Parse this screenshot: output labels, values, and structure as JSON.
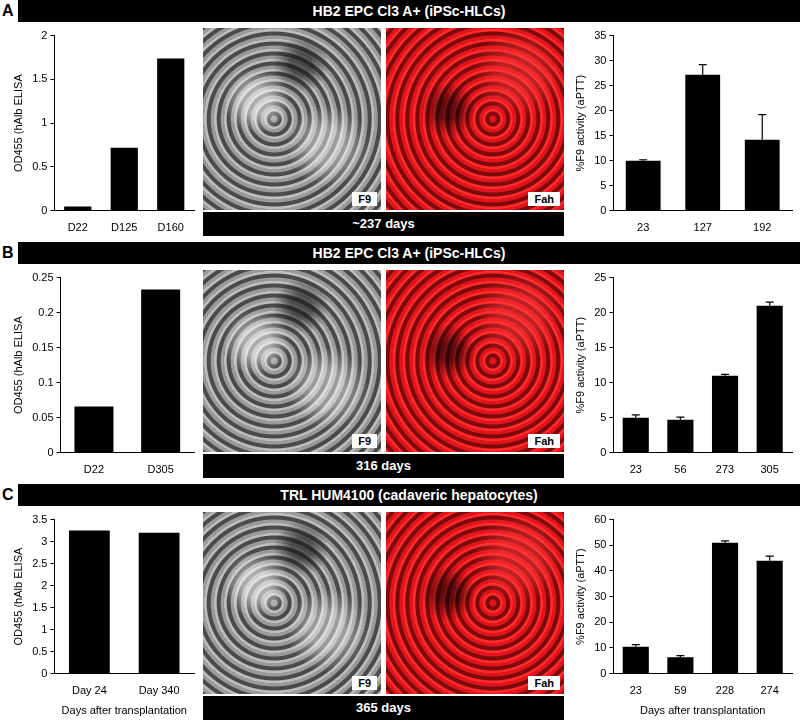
{
  "panels": [
    {
      "label": "A",
      "title": "HB2 EPC Cl3 A+ (iPSc-HLCs)",
      "image_labels": [
        "F9",
        "Fah"
      ],
      "image_caption": "~237 days"
    },
    {
      "label": "B",
      "title": "HB2 EPC Cl3 A+ (iPSc-HLCs)",
      "image_labels": [
        "F9",
        "Fah"
      ],
      "image_caption": "316 days"
    },
    {
      "label": "C",
      "title": "TRL HUM4100 (cadaveric hepatocytes)",
      "image_labels": [
        "F9",
        "Fah"
      ],
      "image_caption": "365 days"
    }
  ],
  "chart_data": [
    {
      "type": "bar",
      "categories": [
        "D22",
        "D125",
        "D160"
      ],
      "values": [
        0.05,
        0.72,
        1.74
      ],
      "color": "#000000",
      "ylabel": "OD455 (hAlb ELISA",
      "ylim": [
        0,
        2
      ],
      "yticks": [
        0,
        0.5,
        1,
        1.5,
        2
      ],
      "grid": false
    },
    {
      "type": "bar",
      "categories": [
        "23",
        "127",
        "192"
      ],
      "values": [
        10,
        27.2,
        14.2
      ],
      "errors": [
        0.2,
        2,
        5
      ],
      "color": "#000000",
      "ylabel": "%F9 activity (aPTT)",
      "ylim": [
        0,
        35
      ],
      "yticks": [
        0,
        5,
        10,
        15,
        20,
        25,
        30,
        35
      ],
      "grid": false
    },
    {
      "type": "bar",
      "categories": [
        "D22",
        "D305"
      ],
      "values": [
        0.066,
        0.233
      ],
      "color": "#000000",
      "ylabel": "OD455 (hAlb ELISA",
      "ylim": [
        0,
        0.25
      ],
      "yticks": [
        0,
        0.05,
        0.1,
        0.15,
        0.2,
        0.25
      ],
      "grid": false
    },
    {
      "type": "bar",
      "categories": [
        "23",
        "56",
        "273",
        "305"
      ],
      "values": [
        5,
        4.7,
        11,
        21
      ],
      "errors": [
        0.4,
        0.4,
        0.2,
        0.5
      ],
      "color": "#000000",
      "ylabel": "%F9 activity (aPTT)",
      "ylim": [
        0,
        25
      ],
      "yticks": [
        0,
        5,
        10,
        15,
        20,
        25
      ],
      "grid": false
    },
    {
      "type": "bar",
      "categories": [
        "Day 24",
        "Day 340"
      ],
      "values": [
        3.25,
        3.2
      ],
      "color": "#000000",
      "ylabel": "OD455 (hAlb ELISA",
      "xlabel": "Days after transplantation",
      "ylim": [
        0,
        3.5
      ],
      "yticks": [
        0,
        0.5,
        1,
        1.5,
        2,
        2.5,
        3,
        3.5
      ],
      "grid": false
    },
    {
      "type": "bar",
      "categories": [
        "23",
        "59",
        "228",
        "274"
      ],
      "values": [
        10.5,
        6.4,
        51,
        44
      ],
      "errors": [
        0.8,
        0.6,
        0.7,
        1.8
      ],
      "color": "#000000",
      "ylabel": "%F9 activity (aPTT)",
      "xlabel": "Days after transplantation",
      "ylim": [
        0,
        60
      ],
      "yticks": [
        0,
        10,
        20,
        30,
        40,
        50,
        60
      ],
      "grid": false
    }
  ]
}
